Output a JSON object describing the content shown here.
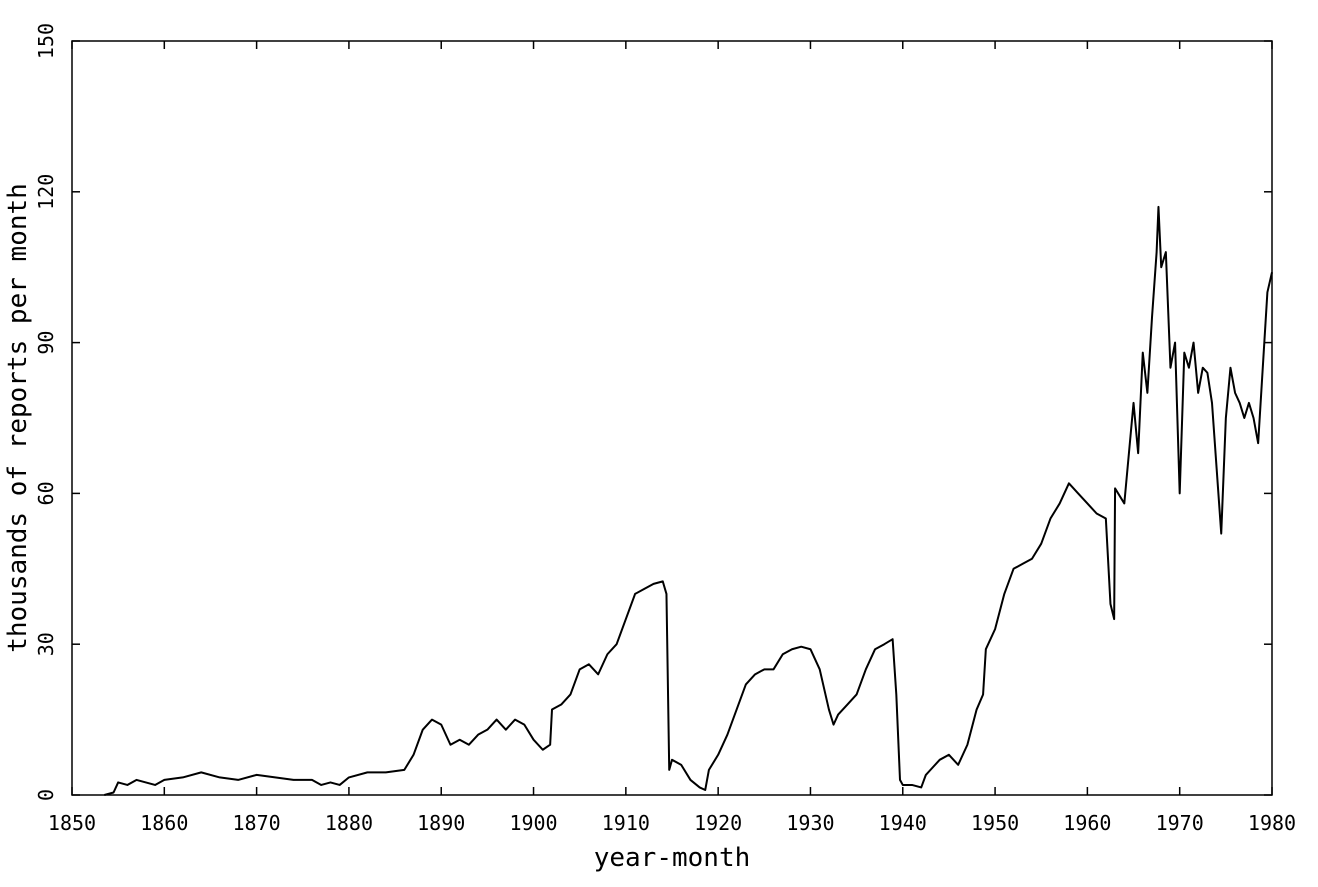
{
  "chart_data": {
    "type": "line",
    "xlabel": "year-month",
    "ylabel": "thousands of reports per month",
    "color": "#000000",
    "xlim": [
      1850,
      1980
    ],
    "ylim": [
      0,
      150
    ],
    "xticks": [
      1850,
      1860,
      1870,
      1880,
      1890,
      1900,
      1910,
      1920,
      1930,
      1940,
      1950,
      1960,
      1970,
      1980
    ],
    "yticks": [
      0,
      30,
      60,
      90,
      120,
      150
    ],
    "x": [
      1853.5,
      1854.5,
      1855,
      1856,
      1857,
      1858,
      1859,
      1860,
      1862,
      1864,
      1866,
      1868,
      1870,
      1872,
      1874,
      1876,
      1877,
      1878,
      1879,
      1880,
      1882,
      1884,
      1886,
      1887,
      1888,
      1889,
      1890,
      1891,
      1892,
      1893,
      1894,
      1895,
      1896,
      1897,
      1898,
      1899,
      1900,
      1901,
      1901.8,
      1902,
      1903,
      1904,
      1905,
      1906,
      1907,
      1908,
      1909,
      1910,
      1911,
      1912,
      1913,
      1914,
      1914.4,
      1914.7,
      1915,
      1916,
      1917,
      1918,
      1918.6,
      1919,
      1920,
      1921,
      1922,
      1923,
      1924,
      1925,
      1926,
      1927,
      1928,
      1929,
      1930,
      1931,
      1932,
      1932.5,
      1933,
      1934,
      1935,
      1936,
      1937,
      1938,
      1938.9,
      1939.3,
      1939.7,
      1940,
      1941,
      1942,
      1942.5,
      1943,
      1944,
      1945,
      1946,
      1947,
      1948,
      1948.7,
      1949,
      1950,
      1951,
      1952,
      1953,
      1954,
      1955,
      1956,
      1957,
      1958,
      1959,
      1960,
      1961,
      1962,
      1962.5,
      1962.9,
      1963,
      1964,
      1965,
      1965.5,
      1966,
      1966.5,
      1967,
      1967.5,
      1967.7,
      1968,
      1968.5,
      1969,
      1969.5,
      1970,
      1970.5,
      1971,
      1971.5,
      1972,
      1972.5,
      1973,
      1973.5,
      1974,
      1974.5,
      1975,
      1975.5,
      1976,
      1976.5,
      1977,
      1977.5,
      1978,
      1978.5,
      1979,
      1979.5,
      1980
    ],
    "values": [
      0,
      0.5,
      2.5,
      2,
      3,
      2.5,
      2,
      3,
      3.5,
      4.5,
      3.5,
      3,
      4,
      3.5,
      3,
      3,
      2,
      2.5,
      2,
      3.5,
      4.5,
      4.5,
      5,
      8,
      13,
      15,
      14,
      10,
      11,
      10,
      12,
      13,
      15,
      13,
      15,
      14,
      11,
      9,
      10,
      17,
      18,
      20,
      25,
      26,
      24,
      28,
      30,
      35,
      40,
      41,
      42,
      42.5,
      40,
      5,
      7,
      6,
      3,
      1.5,
      1,
      5,
      8,
      12,
      17,
      22,
      24,
      25,
      25,
      28,
      29,
      29.5,
      29,
      25,
      17,
      14,
      16,
      18,
      20,
      25,
      29,
      30,
      31,
      20,
      3,
      2,
      2,
      1.5,
      4,
      5,
      7,
      8,
      6,
      10,
      17,
      20,
      29,
      33,
      40,
      45,
      46,
      47,
      50,
      55,
      58,
      62,
      60,
      58,
      56,
      55,
      38,
      35,
      61,
      58,
      78,
      68,
      88,
      80,
      95,
      108,
      117,
      105,
      108,
      85,
      90,
      60,
      88,
      85,
      90,
      80,
      85,
      84,
      78,
      65,
      52,
      75,
      85,
      80,
      78,
      75,
      78,
      75,
      70,
      85,
      100,
      104
    ]
  }
}
